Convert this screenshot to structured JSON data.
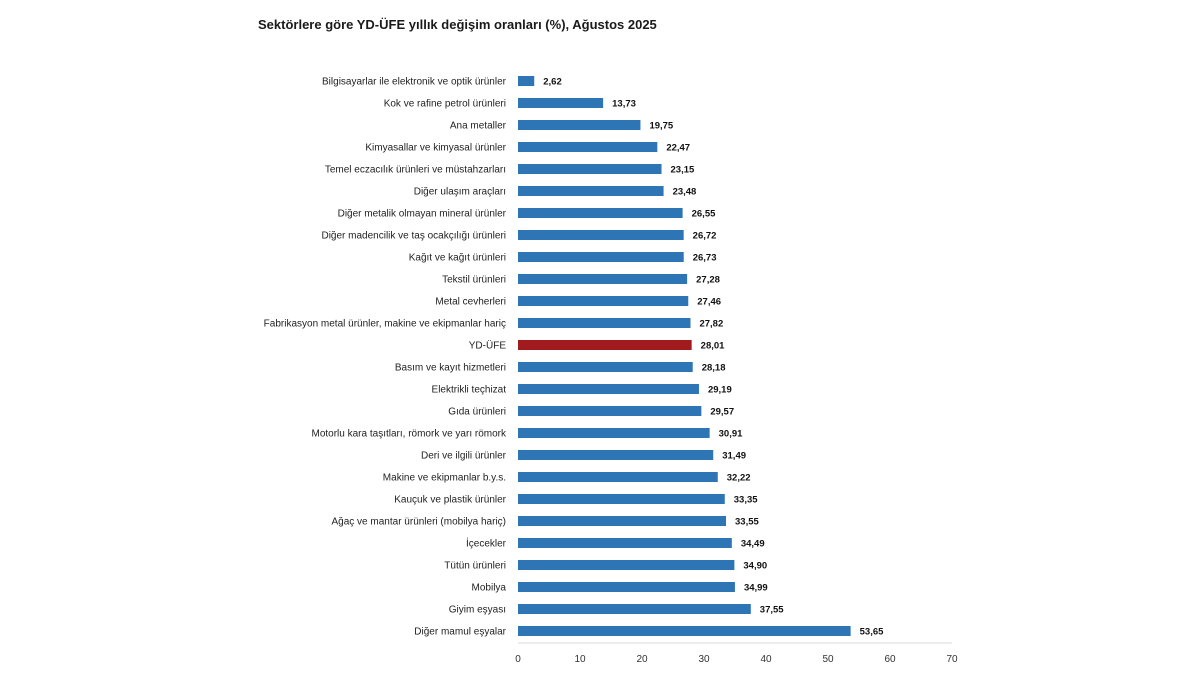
{
  "chart_data": {
    "type": "bar",
    "orientation": "horizontal",
    "title": "Sektörlere göre YD-ÜFE yıllık değişim oranları (%), Ağustos 2025",
    "xlabel": "",
    "ylabel": "",
    "xlim": [
      0,
      70
    ],
    "ticks": [
      0,
      10,
      20,
      30,
      40,
      50,
      60,
      70
    ],
    "grid": false,
    "colors": {
      "default": "#2e75b6",
      "highlight": "#a01a1e"
    },
    "highlight_category": "YD-ÜFE",
    "categories": [
      "Bilgisayarlar ile elektronik ve optik ürünler",
      "Kok ve rafine petrol ürünleri",
      "Ana metaller",
      "Kimyasallar ve kimyasal ürünler",
      "Temel eczacılık ürünleri ve müstahzarları",
      "Diğer ulaşım araçları",
      "Diğer metalik olmayan mineral ürünler",
      "Diğer madencilik ve taş ocakçılığı ürünleri",
      "Kağıt ve kağıt ürünleri",
      "Tekstil ürünleri",
      "Metal cevherleri",
      "Fabrikasyon metal ürünler, makine ve ekipmanlar hariç",
      "YD-ÜFE",
      "Basım ve kayıt hizmetleri",
      "Elektrikli teçhizat",
      "Gıda ürünleri",
      "Motorlu kara taşıtları, römork ve yarı römork",
      "Deri ve ilgili ürünler",
      "Makine ve ekipmanlar b.y.s.",
      "Kauçuk ve plastik ürünler",
      "Ağaç ve mantar ürünleri (mobilya hariç)",
      "İçecekler",
      "Tütün ürünleri",
      "Mobilya",
      "Giyim eşyası",
      "Diğer mamul eşyalar"
    ],
    "values": [
      2.62,
      13.73,
      19.75,
      22.47,
      23.15,
      23.48,
      26.55,
      26.72,
      26.73,
      27.28,
      27.46,
      27.82,
      28.01,
      28.18,
      29.19,
      29.57,
      30.91,
      31.49,
      32.22,
      33.35,
      33.55,
      34.49,
      34.9,
      34.99,
      37.55,
      53.65
    ],
    "value_labels": [
      "2,62",
      "13,73",
      "19,75",
      "22,47",
      "23,15",
      "23,48",
      "26,55",
      "26,72",
      "26,73",
      "27,28",
      "27,46",
      "27,82",
      "28,01",
      "28,18",
      "29,19",
      "29,57",
      "30,91",
      "31,49",
      "32,22",
      "33,35",
      "33,55",
      "34,49",
      "34,90",
      "34,99",
      "37,55",
      "53,65"
    ]
  }
}
